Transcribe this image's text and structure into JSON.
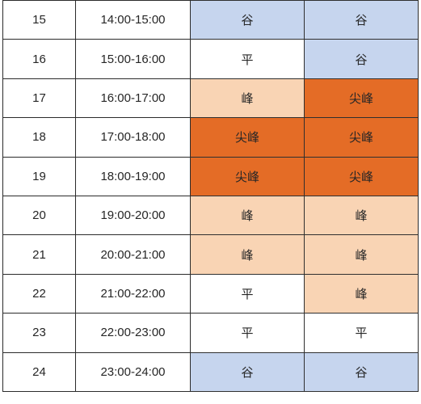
{
  "colors": {
    "谷": "#c6d5ee",
    "平": "#ffffff",
    "峰": "#f9d4b4",
    "尖峰": "#e46c26"
  },
  "rows": [
    {
      "index": "15",
      "time": "14:00-15:00",
      "period_1": "谷",
      "period_2": "谷"
    },
    {
      "index": "16",
      "time": "15:00-16:00",
      "period_1": "平",
      "period_2": "谷"
    },
    {
      "index": "17",
      "time": "16:00-17:00",
      "period_1": "峰",
      "period_2": "尖峰"
    },
    {
      "index": "18",
      "time": "17:00-18:00",
      "period_1": "尖峰",
      "period_2": "尖峰"
    },
    {
      "index": "19",
      "time": "18:00-19:00",
      "period_1": "尖峰",
      "period_2": "尖峰"
    },
    {
      "index": "20",
      "time": "19:00-20:00",
      "period_1": "峰",
      "period_2": "峰"
    },
    {
      "index": "21",
      "time": "20:00-21:00",
      "period_1": "峰",
      "period_2": "峰"
    },
    {
      "index": "22",
      "time": "21:00-22:00",
      "period_1": "平",
      "period_2": "峰"
    },
    {
      "index": "23",
      "time": "22:00-23:00",
      "period_1": "平",
      "period_2": "平"
    },
    {
      "index": "24",
      "time": "23:00-24:00",
      "period_1": "谷",
      "period_2": "谷"
    }
  ]
}
